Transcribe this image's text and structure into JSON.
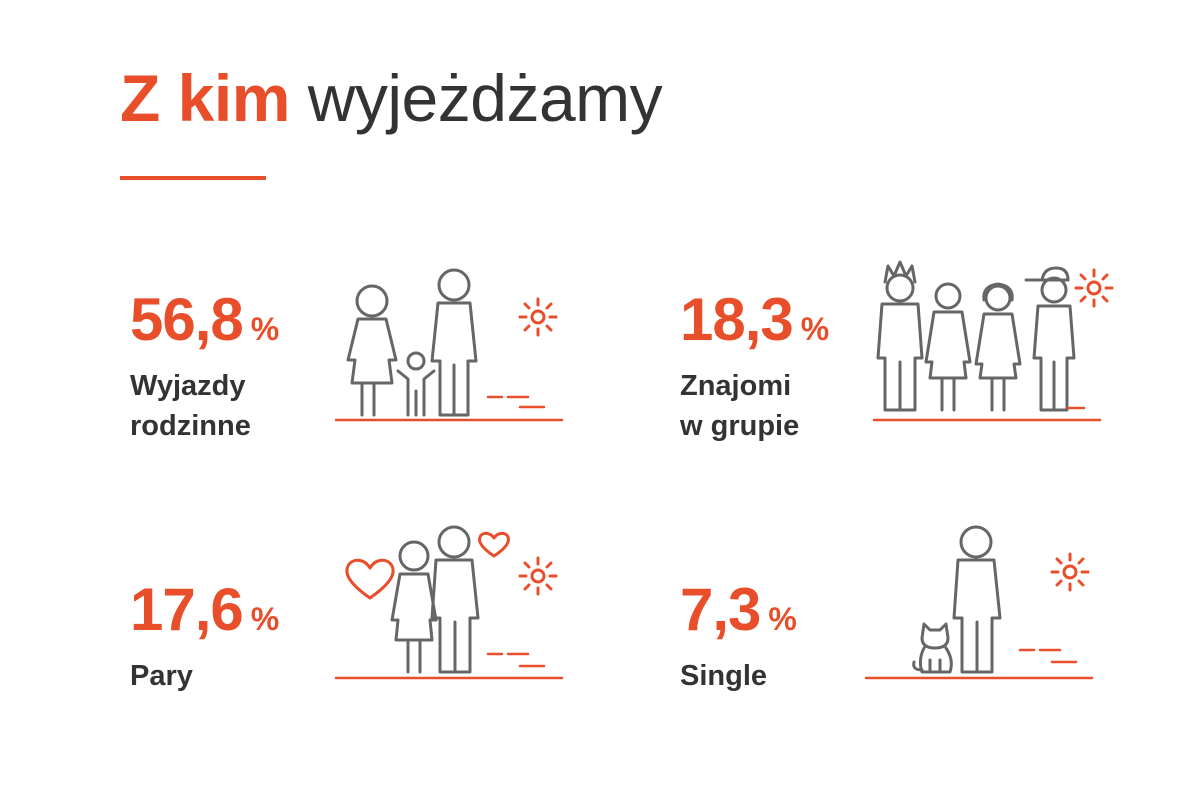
{
  "header": {
    "title_accent": "Z kim",
    "title_rest": "wyjeżdżamy"
  },
  "colors": {
    "accent": "#e84e2a",
    "text": "#333333",
    "icon_stroke": "#666666"
  },
  "stats": [
    {
      "value": "56,8",
      "unit": "%",
      "label_lines": [
        "Wyjazdy",
        "rodzinne"
      ],
      "icon": "family-with-child-icon"
    },
    {
      "value": "18,3",
      "unit": "%",
      "label_lines": [
        "Znajomi",
        "w grupie"
      ],
      "icon": "group-of-friends-icon"
    },
    {
      "value": "17,6",
      "unit": "%",
      "label_lines": [
        "Pary"
      ],
      "icon": "couple-with-hearts-icon"
    },
    {
      "value": "7,3",
      "unit": "%",
      "label_lines": [
        "Single"
      ],
      "icon": "single-person-with-cat-icon"
    }
  ]
}
